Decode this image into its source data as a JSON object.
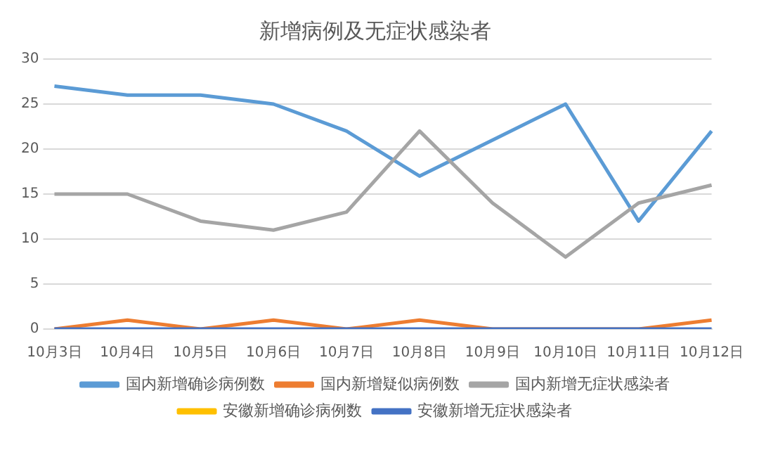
{
  "chart_data": {
    "type": "line",
    "title": "新增病例及无症状感染者",
    "categories": [
      "10月3日",
      "10月4日",
      "10月5日",
      "10月6日",
      "10月7日",
      "10月8日",
      "10月9日",
      "10月10日",
      "10月11日",
      "10月12日"
    ],
    "series": [
      {
        "name": "国内新增确诊病例数",
        "color": "#5b9bd5",
        "values": [
          27,
          26,
          26,
          25,
          22,
          17,
          21,
          25,
          12,
          22
        ]
      },
      {
        "name": "国内新增疑似病例数",
        "color": "#ed7d31",
        "values": [
          0,
          1,
          0,
          1,
          0,
          1,
          0,
          0,
          0,
          1
        ]
      },
      {
        "name": "国内新增无症状感染者",
        "color": "#a5a5a5",
        "values": [
          15,
          15,
          12,
          11,
          13,
          22,
          14,
          8,
          14,
          16
        ]
      },
      {
        "name": "安徽新增确诊病例数",
        "color": "#ffc000",
        "values": [
          null,
          null,
          null,
          null,
          null,
          null,
          null,
          null,
          null,
          null
        ]
      },
      {
        "name": "安徽新增无症状感染者",
        "color": "#4472c4",
        "values": [
          0,
          0,
          0,
          0,
          0,
          0,
          0,
          0,
          0,
          0
        ]
      }
    ],
    "ylim": [
      0,
      30
    ],
    "yticks": [
      0,
      5,
      10,
      15,
      20,
      25,
      30
    ],
    "grid": "y",
    "legend": "bottom",
    "marker": "none",
    "line_style": "solid"
  }
}
